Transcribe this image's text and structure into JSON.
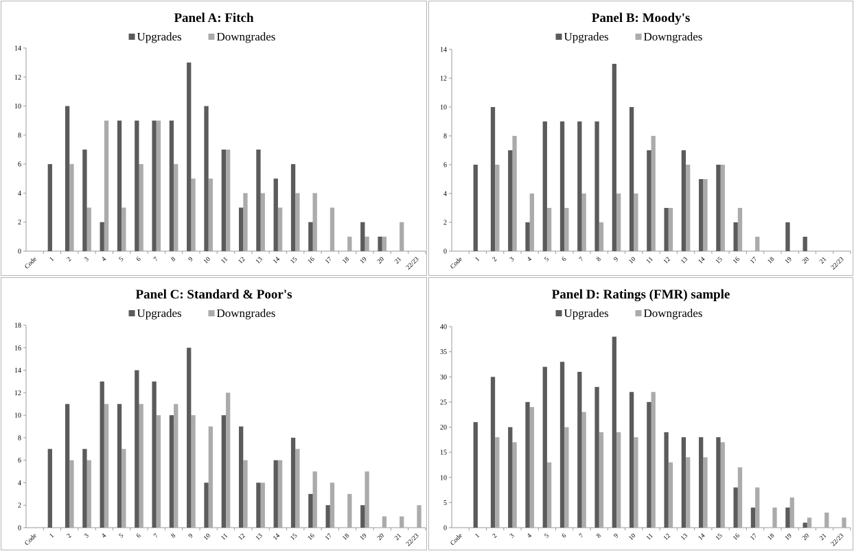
{
  "colors": {
    "upgrades": "#5b5b5b",
    "downgrades": "#ababab",
    "axis": "#9a9a9a",
    "border": "#b5b5b5"
  },
  "chart_data": [
    {
      "type": "bar",
      "title": "Panel A: Fitch",
      "categories": [
        "Code",
        "1",
        "2",
        "3",
        "4",
        "5",
        "6",
        "7",
        "8",
        "9",
        "10",
        "11",
        "12",
        "13",
        "14",
        "15",
        "16",
        "17",
        "18",
        "19",
        "20",
        "21",
        "22/23"
      ],
      "series": [
        {
          "name": "Upgrades",
          "values": [
            0,
            6,
            10,
            7,
            2,
            9,
            9,
            9,
            9,
            13,
            10,
            7,
            3,
            7,
            5,
            6,
            2,
            0,
            0,
            2,
            1,
            0,
            0
          ]
        },
        {
          "name": "Downgrades",
          "values": [
            0,
            0,
            6,
            3,
            9,
            3,
            6,
            9,
            6,
            5,
            5,
            7,
            4,
            4,
            3,
            4,
            4,
            3,
            1,
            1,
            1,
            2,
            0
          ]
        }
      ],
      "ylim": [
        0,
        14
      ],
      "yticks": [
        0,
        2,
        4,
        6,
        8,
        10,
        12,
        14
      ],
      "legend": "top-center",
      "grid": false
    },
    {
      "type": "bar",
      "title": "Panel B: Moody's",
      "categories": [
        "Code",
        "1",
        "2",
        "3",
        "4",
        "5",
        "6",
        "7",
        "8",
        "9",
        "10",
        "11",
        "12",
        "13",
        "14",
        "15",
        "16",
        "17",
        "18",
        "19",
        "20",
        "21",
        "22/23"
      ],
      "series": [
        {
          "name": "Upgrades",
          "values": [
            0,
            6,
            10,
            7,
            2,
            9,
            9,
            9,
            9,
            13,
            10,
            7,
            3,
            7,
            5,
            6,
            2,
            0,
            0,
            2,
            1,
            0,
            0
          ]
        },
        {
          "name": "Downgrades",
          "values": [
            0,
            0,
            6,
            8,
            4,
            3,
            3,
            4,
            2,
            4,
            4,
            8,
            3,
            6,
            5,
            6,
            3,
            1,
            0,
            0,
            0,
            0,
            0
          ]
        }
      ],
      "ylim": [
        0,
        14
      ],
      "yticks": [
        0,
        2,
        4,
        6,
        8,
        10,
        12,
        14
      ],
      "legend": "top-center",
      "grid": false
    },
    {
      "type": "bar",
      "title": "Panel C: Standard & Poor's",
      "categories": [
        "Code",
        "1",
        "2",
        "3",
        "4",
        "5",
        "6",
        "7",
        "8",
        "9",
        "10",
        "11",
        "12",
        "13",
        "14",
        "15",
        "16",
        "17",
        "18",
        "19",
        "20",
        "21",
        "22/23"
      ],
      "series": [
        {
          "name": "Upgrades",
          "values": [
            0,
            7,
            11,
            7,
            13,
            11,
            14,
            13,
            10,
            16,
            4,
            10,
            9,
            4,
            6,
            8,
            3,
            2,
            0,
            2,
            0,
            0,
            0
          ]
        },
        {
          "name": "Downgrades",
          "values": [
            0,
            0,
            6,
            6,
            11,
            7,
            11,
            10,
            11,
            10,
            9,
            12,
            6,
            4,
            6,
            7,
            5,
            4,
            3,
            5,
            1,
            1,
            2
          ]
        }
      ],
      "ylim": [
        0,
        18
      ],
      "yticks": [
        0,
        2,
        4,
        6,
        8,
        10,
        12,
        14,
        16,
        18
      ],
      "legend": "top-center",
      "grid": false
    },
    {
      "type": "bar",
      "title": "Panel D: Ratings (FMR) sample",
      "categories": [
        "Code",
        "1",
        "2",
        "3",
        "4",
        "5",
        "6",
        "7",
        "8",
        "9",
        "10",
        "11",
        "12",
        "13",
        "14",
        "15",
        "16",
        "17",
        "18",
        "19",
        "20",
        "21",
        "22/23"
      ],
      "series": [
        {
          "name": "Upgrades",
          "values": [
            0,
            21,
            30,
            20,
            25,
            32,
            33,
            31,
            28,
            38,
            27,
            25,
            19,
            18,
            18,
            18,
            8,
            4,
            0,
            4,
            1,
            0,
            0
          ]
        },
        {
          "name": "Downgrades",
          "values": [
            0,
            0,
            18,
            17,
            24,
            13,
            20,
            23,
            19,
            19,
            18,
            27,
            13,
            14,
            14,
            17,
            12,
            8,
            4,
            6,
            2,
            3,
            2
          ]
        }
      ],
      "ylim": [
        0,
        40
      ],
      "yticks": [
        0,
        5,
        10,
        15,
        20,
        25,
        30,
        35,
        40
      ],
      "legend": "top-center",
      "grid": false
    }
  ]
}
